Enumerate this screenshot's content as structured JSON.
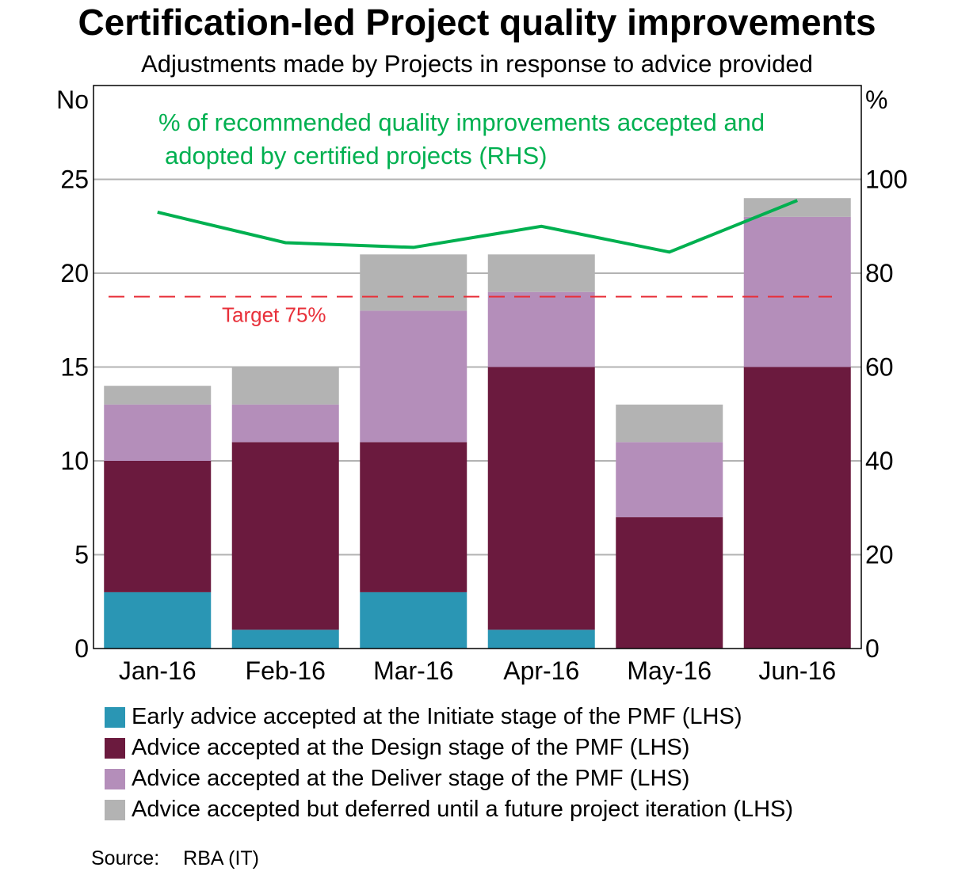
{
  "chart_data": {
    "type": "bar",
    "stacked": true,
    "title": "Certification-led Project quality improvements",
    "subtitle": "Adjustments made by Projects in response to advice provided",
    "ylabel_left": "No",
    "ylabel_right": "%",
    "ylim_left": [
      0,
      30
    ],
    "ylim_right": [
      0,
      120
    ],
    "yticks_left": [
      0,
      5,
      10,
      15,
      20,
      25
    ],
    "yticks_right": [
      0,
      20,
      40,
      60,
      80,
      100
    ],
    "grid": true,
    "categories": [
      "Jan-16",
      "Feb-16",
      "Mar-16",
      "Apr-16",
      "May-16",
      "Jun-16"
    ],
    "series": [
      {
        "name": "Early advice accepted at the Initiate stage of the PMF (LHS)",
        "color": "#2a96b4",
        "values": [
          3,
          1,
          3,
          1,
          0,
          0
        ]
      },
      {
        "name": "Advice accepted at the Design stage of the PMF (LHS)",
        "color": "#6b1a3e",
        "values": [
          7,
          10,
          8,
          14,
          7,
          15
        ]
      },
      {
        "name": "Advice accepted at the Deliver stage of the PMF (LHS)",
        "color": "#b48eba",
        "values": [
          3,
          2,
          7,
          4,
          4,
          8
        ]
      },
      {
        "name": "Advice accepted but deferred until a future project iteration (LHS)",
        "color": "#b3b3b3",
        "values": [
          1,
          2,
          3,
          2,
          2,
          1
        ]
      }
    ],
    "line": {
      "label_line1": "% of recommended quality improvements accepted and",
      "label_line2": "adopted by certified projects (RHS)",
      "color": "#00b050",
      "axis": "right",
      "values": [
        93,
        86.5,
        85.5,
        90,
        84.5,
        95.5
      ]
    },
    "target": {
      "label": "Target 75%",
      "value": 75,
      "axis": "right",
      "color": "#e8303a",
      "style": "dashed"
    },
    "legend_placement": "bottom",
    "source_label": "Source:",
    "source": "RBA (IT)"
  }
}
